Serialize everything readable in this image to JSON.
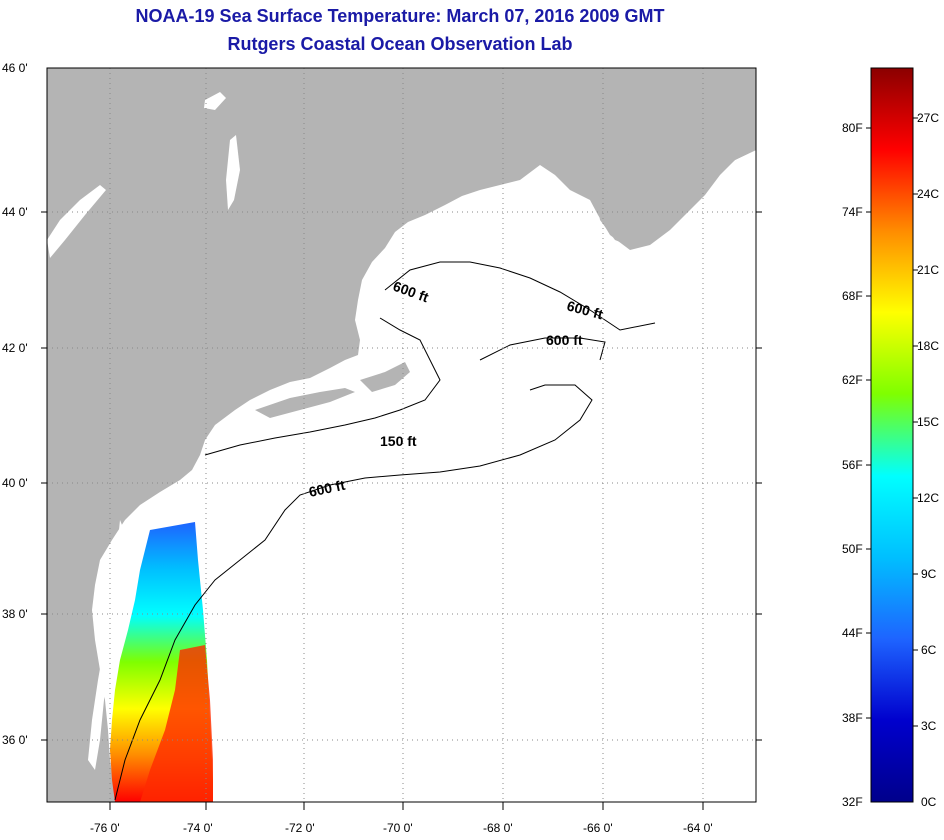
{
  "header": {
    "title": "NOAA-19 Sea Surface Temperature:  March 07, 2016 2009 GMT",
    "subtitle": "Rutgers Coastal Ocean Observation Lab"
  },
  "map": {
    "lat_labels": [
      "46 0'",
      "44 0'",
      "42 0'",
      "40 0'",
      "38 0'",
      "36 0'"
    ],
    "lon_labels": [
      "-76 0'",
      "-74 0'",
      "-72 0'",
      "-70 0'",
      "-68 0'",
      "-66 0'",
      "-64 0'"
    ],
    "contour_labels": [
      "600 ft",
      "600 ft",
      "600 ft",
      "150 ft",
      "600 ft"
    ],
    "land_color": "#b4b4b4",
    "water_color": "#ffffff"
  },
  "colorbar": {
    "f_labels": [
      "80F",
      "74F",
      "68F",
      "62F",
      "56F",
      "50F",
      "44F",
      "38F",
      "32F"
    ],
    "c_labels": [
      "27C",
      "24C",
      "21C",
      "18C",
      "15C",
      "12C",
      "9C",
      "6C",
      "3C",
      "0C"
    ],
    "colors": [
      "#8b0000",
      "#ff0000",
      "#ff8c00",
      "#ffff00",
      "#7fff00",
      "#00ffff",
      "#00bfff",
      "#1e64ff",
      "#0000cd",
      "#00008b"
    ]
  }
}
